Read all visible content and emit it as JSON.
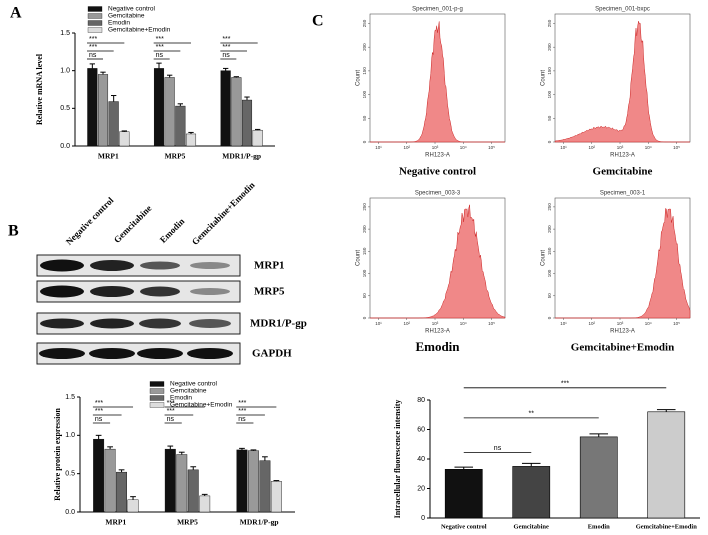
{
  "panel_labels": [
    "A",
    "B",
    "C"
  ],
  "chart_data": [
    {
      "type": "bar",
      "ylabel": "Relative mRNA level",
      "categories": [
        "MRP1",
        "MRP5",
        "MDR1/P-gp"
      ],
      "series": [
        {
          "name": "Negative control",
          "color": "#111111",
          "values": [
            1.03,
            1.03,
            1.0
          ],
          "errors": [
            0.06,
            0.07,
            0.03
          ]
        },
        {
          "name": "Gemcitabine",
          "color": "#999999",
          "values": [
            0.95,
            0.91,
            0.91
          ],
          "errors": [
            0.03,
            0.03,
            0.01
          ]
        },
        {
          "name": "Emodin",
          "color": "#666666",
          "values": [
            0.59,
            0.53,
            0.61
          ],
          "errors": [
            0.08,
            0.03,
            0.04
          ]
        },
        {
          "name": "Gemcitabine+Emodin",
          "color": "#dddddd",
          "values": [
            0.19,
            0.16,
            0.21
          ],
          "errors": [
            0.01,
            0.02,
            0.01
          ]
        }
      ],
      "brackets": [
        [
          "***",
          "***",
          "ns"
        ],
        [
          "***",
          "***",
          "ns"
        ],
        [
          "***",
          "***",
          "ns"
        ]
      ],
      "ylim": [
        0,
        1.5
      ],
      "yticks": [
        {
          "value": 0,
          "label": "0.0"
        },
        {
          "value": 0.5,
          "label": "0.5"
        },
        {
          "value": 1,
          "label": "1.0"
        },
        {
          "value": 1.5,
          "label": "1.5"
        }
      ]
    },
    {
      "type": "bar",
      "ylabel": "Relative protein expression",
      "categories": [
        "MRP1",
        "MRP5",
        "MDR1/P-gp"
      ],
      "series": [
        {
          "name": "Negative control",
          "color": "#111111",
          "values": [
            0.95,
            0.82,
            0.81
          ],
          "errors": [
            0.05,
            0.04,
            0.02
          ]
        },
        {
          "name": "Gemcitabine",
          "color": "#999999",
          "values": [
            0.82,
            0.75,
            0.8
          ],
          "errors": [
            0.03,
            0.03,
            0.01
          ]
        },
        {
          "name": "Emodin",
          "color": "#666666",
          "values": [
            0.52,
            0.55,
            0.67
          ],
          "errors": [
            0.03,
            0.04,
            0.05
          ]
        },
        {
          "name": "Gemcitabine+Emodin",
          "color": "#dddddd",
          "values": [
            0.16,
            0.21,
            0.4
          ],
          "errors": [
            0.04,
            0.02,
            0.01
          ]
        }
      ],
      "brackets": [
        [
          "***",
          "***",
          "ns"
        ],
        [
          "***",
          "***",
          "ns"
        ],
        [
          "***",
          "***",
          "ns"
        ]
      ],
      "ylim": [
        0,
        1.5
      ],
      "yticks": [
        {
          "value": 0,
          "label": "0.0"
        },
        {
          "value": 0.5,
          "label": "0.5"
        },
        {
          "value": 1,
          "label": "1.0"
        },
        {
          "value": 1.5,
          "label": "1.5"
        }
      ]
    },
    {
      "type": "bar",
      "ylabel": "Intracellular fluorescence intensity",
      "categories": [
        "Negative control",
        "Gemcitabine",
        "Emodin",
        "Gemcitabine+Emodin"
      ],
      "values": [
        33,
        35,
        55,
        72
      ],
      "errors": [
        1.5,
        2,
        2,
        1.5
      ],
      "colors": [
        "#111111",
        "#444444",
        "#777777",
        "#cccccc"
      ],
      "brackets": [
        "ns",
        "**",
        "***"
      ],
      "ylim": [
        0,
        80
      ],
      "yticks": [
        0,
        20,
        40,
        60,
        80
      ]
    }
  ],
  "blot": {
    "lanes": [
      "Negative control",
      "Gemcitabine",
      "Emodin",
      "Gemcitabine+Emodin"
    ],
    "proteins": [
      "MRP1",
      "MRP5",
      "MDR1/P-gp",
      "GAPDH"
    ]
  },
  "flow_axes": {
    "xlabel": "RH123-A",
    "ylabel": "Count",
    "xscale": "log",
    "xlim": [
      5,
      300000
    ],
    "xticks": [
      {
        "value": 10,
        "label": "10¹"
      },
      {
        "value": 100,
        "label": "10²"
      },
      {
        "value": 1000,
        "label": "10³"
      },
      {
        "value": 10000,
        "label": "10⁴"
      },
      {
        "value": 100000,
        "label": "10⁵"
      }
    ],
    "ylim": [
      0,
      270
    ],
    "yticks": [
      0,
      50,
      100,
      150,
      200,
      250
    ]
  },
  "flow_panels": [
    {
      "title": "Specimen_001-p-g",
      "caption": "Negative control"
    },
    {
      "title": "Specimen_001-bxpc",
      "caption": "Gemcitabine"
    },
    {
      "title": "Specimen_003-3",
      "caption": "Emodin"
    },
    {
      "title": "Specimen_003-1",
      "caption": "Gemcitabine+Emodin"
    }
  ]
}
